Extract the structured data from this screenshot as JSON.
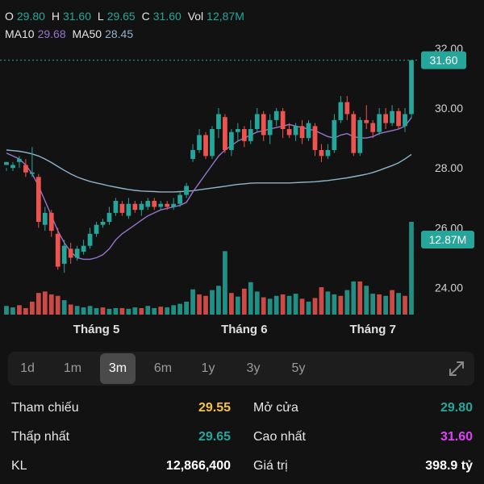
{
  "header": {
    "o_label": "O",
    "o_value": "29.80",
    "h_label": "H",
    "h_value": "31.60",
    "l_label": "L",
    "l_value": "29.65",
    "c_label": "C",
    "c_value": "31.60",
    "vol_label": "Vol",
    "vol_value": "12,87M",
    "ma10_label": "MA10",
    "ma10_value": "29.68",
    "ma50_label": "MA50",
    "ma50_value": "28.45"
  },
  "colors": {
    "up": "#26a69a",
    "down": "#ef5350",
    "ma10": "#9575cd",
    "ma50": "#8fb3c9",
    "ref": "#f5c242",
    "high": "#e040fb"
  },
  "chart_data": {
    "type": "candlestick",
    "price_ticks": [
      "32.00",
      "30.00",
      "28.00",
      "26.00",
      "24.00"
    ],
    "ylim": [
      23.1,
      32.4
    ],
    "month_labels": [
      {
        "label": "Tháng 5",
        "index": 14
      },
      {
        "label": "Tháng 6",
        "index": 37
      },
      {
        "label": "Tháng 7",
        "index": 57
      }
    ],
    "last_price_tag": "31.60",
    "last_volume_tag": "12.87M",
    "candles": [
      [
        28.1,
        28.2,
        28.0,
        27.9
      ],
      [
        28.0,
        28.1,
        28.2,
        27.9
      ],
      [
        28.2,
        28.3,
        28.4,
        28.0
      ],
      [
        28.1,
        27.85,
        28.3,
        27.7
      ],
      [
        27.8,
        27.85,
        28.7,
        27.7
      ],
      [
        27.7,
        26.2,
        27.8,
        26.0
      ],
      [
        26.1,
        26.5,
        26.7,
        25.9
      ],
      [
        26.5,
        25.9,
        26.6,
        25.7
      ],
      [
        25.8,
        24.7,
        26.0,
        24.6
      ],
      [
        24.8,
        25.4,
        25.6,
        24.5
      ],
      [
        25.3,
        25.0,
        25.5,
        24.8
      ],
      [
        25.0,
        25.3,
        25.4,
        24.9
      ],
      [
        25.2,
        25.4,
        25.6,
        25.1
      ],
      [
        25.4,
        25.8,
        26.0,
        25.3
      ],
      [
        25.8,
        26.1,
        26.2,
        25.7
      ],
      [
        26.1,
        26.2,
        26.3,
        26.0
      ],
      [
        26.2,
        26.5,
        26.7,
        26.1
      ],
      [
        26.5,
        26.9,
        27.0,
        26.4
      ],
      [
        26.8,
        26.5,
        26.9,
        26.4
      ],
      [
        26.4,
        26.8,
        27.0,
        26.3
      ],
      [
        26.8,
        26.6,
        26.9,
        26.5
      ],
      [
        26.6,
        26.8,
        26.9,
        26.4
      ],
      [
        26.7,
        26.9,
        27.0,
        26.6
      ],
      [
        26.9,
        26.7,
        27.0,
        26.6
      ],
      [
        26.7,
        26.8,
        26.9,
        26.6
      ],
      [
        26.8,
        26.7,
        26.9,
        26.6
      ],
      [
        26.7,
        26.8,
        27.0,
        26.6
      ],
      [
        26.8,
        27.1,
        27.2,
        26.7
      ],
      [
        27.1,
        27.4,
        27.5,
        27.0
      ],
      [
        28.3,
        28.6,
        28.8,
        28.2
      ],
      [
        28.6,
        29.1,
        29.3,
        28.5
      ],
      [
        29.1,
        28.4,
        29.2,
        28.3
      ],
      [
        28.4,
        29.3,
        29.4,
        28.3
      ],
      [
        29.3,
        29.8,
        30.0,
        29.0
      ],
      [
        29.7,
        28.6,
        29.8,
        28.5
      ],
      [
        28.6,
        29.2,
        29.3,
        28.4
      ],
      [
        29.2,
        29.3,
        29.5,
        28.9
      ],
      [
        29.3,
        28.9,
        29.4,
        28.7
      ],
      [
        28.9,
        29.3,
        29.6,
        28.8
      ],
      [
        29.3,
        29.8,
        30.0,
        29.2
      ],
      [
        29.8,
        29.1,
        29.9,
        28.9
      ],
      [
        29.1,
        29.6,
        29.8,
        28.8
      ],
      [
        29.6,
        29.9,
        30.0,
        29.4
      ],
      [
        29.9,
        29.3,
        30.0,
        29.0
      ],
      [
        29.3,
        29.1,
        29.5,
        29.0
      ],
      [
        29.1,
        29.4,
        29.5,
        28.9
      ],
      [
        29.4,
        29.0,
        29.6,
        28.8
      ],
      [
        29.0,
        29.5,
        29.6,
        28.9
      ],
      [
        29.4,
        28.6,
        29.5,
        28.4
      ],
      [
        28.6,
        28.4,
        28.8,
        28.2
      ],
      [
        28.4,
        28.6,
        28.8,
        28.3
      ],
      [
        28.6,
        29.6,
        29.8,
        28.5
      ],
      [
        29.6,
        30.2,
        30.4,
        29.5
      ],
      [
        30.2,
        29.8,
        30.4,
        29.6
      ],
      [
        29.8,
        28.5,
        29.9,
        28.4
      ],
      [
        28.5,
        29.6,
        29.7,
        28.4
      ],
      [
        29.6,
        29.5,
        30.1,
        29.3
      ],
      [
        29.5,
        29.2,
        29.6,
        29.0
      ],
      [
        29.2,
        29.8,
        30.0,
        29.1
      ],
      [
        29.8,
        29.5,
        30.0,
        29.3
      ],
      [
        29.5,
        29.9,
        30.1,
        29.4
      ],
      [
        29.9,
        29.4,
        30.0,
        29.3
      ],
      [
        29.4,
        29.8,
        30.0,
        29.2
      ],
      [
        29.8,
        31.6,
        31.6,
        29.65
      ]
    ],
    "volumes": [
      [
        1.2,
        1
      ],
      [
        1.0,
        1
      ],
      [
        1.3,
        0
      ],
      [
        0.9,
        0
      ],
      [
        1.8,
        0
      ],
      [
        3.0,
        0
      ],
      [
        3.2,
        0
      ],
      [
        2.8,
        0
      ],
      [
        2.6,
        0
      ],
      [
        2.0,
        1
      ],
      [
        1.4,
        0
      ],
      [
        1.2,
        1
      ],
      [
        1.0,
        1
      ],
      [
        1.2,
        1
      ],
      [
        0.9,
        1
      ],
      [
        1.0,
        0
      ],
      [
        0.8,
        1
      ],
      [
        0.9,
        1
      ],
      [
        0.9,
        0
      ],
      [
        0.8,
        1
      ],
      [
        1.0,
        1
      ],
      [
        0.9,
        0
      ],
      [
        1.2,
        1
      ],
      [
        0.9,
        1
      ],
      [
        1.1,
        0
      ],
      [
        1.0,
        1
      ],
      [
        1.3,
        1
      ],
      [
        1.5,
        1
      ],
      [
        1.8,
        1
      ],
      [
        3.5,
        1
      ],
      [
        2.8,
        0
      ],
      [
        2.6,
        0
      ],
      [
        3.4,
        1
      ],
      [
        4.0,
        1
      ],
      [
        8.8,
        1
      ],
      [
        3.0,
        0
      ],
      [
        2.5,
        1
      ],
      [
        3.6,
        0
      ],
      [
        4.5,
        1
      ],
      [
        3.2,
        1
      ],
      [
        2.4,
        0
      ],
      [
        2.2,
        1
      ],
      [
        2.6,
        1
      ],
      [
        2.8,
        0
      ],
      [
        2.6,
        1
      ],
      [
        2.9,
        1
      ],
      [
        2.2,
        0
      ],
      [
        1.8,
        1
      ],
      [
        2.3,
        0
      ],
      [
        3.8,
        0
      ],
      [
        3.2,
        1
      ],
      [
        2.8,
        1
      ],
      [
        2.6,
        0
      ],
      [
        3.4,
        1
      ],
      [
        4.6,
        1
      ],
      [
        4.6,
        0
      ],
      [
        4.0,
        1
      ],
      [
        2.9,
        1
      ],
      [
        2.8,
        0
      ],
      [
        2.6,
        1
      ],
      [
        3.4,
        0
      ],
      [
        3.0,
        1
      ],
      [
        2.6,
        0
      ],
      [
        12.87,
        1
      ]
    ],
    "ma10": [
      28.5,
      28.4,
      28.3,
      28.1,
      27.8,
      27.4,
      26.9,
      26.4,
      25.9,
      25.5,
      25.2,
      25.0,
      24.95,
      24.95,
      25.0,
      25.1,
      25.3,
      25.6,
      25.8,
      25.95,
      26.1,
      26.25,
      26.4,
      26.5,
      26.6,
      26.65,
      26.7,
      26.75,
      26.85,
      27.2,
      27.5,
      27.8,
      28.1,
      28.4,
      28.6,
      28.75,
      28.9,
      29.0,
      29.1,
      29.2,
      29.25,
      29.3,
      29.35,
      29.4,
      29.45,
      29.4,
      29.35,
      29.3,
      29.25,
      29.15,
      29.05,
      29.0,
      29.1,
      29.15,
      29.05,
      29.0,
      29.0,
      29.05,
      29.15,
      29.2,
      29.25,
      29.3,
      29.4,
      29.68
    ],
    "ma50": [
      28.6,
      28.58,
      28.56,
      28.52,
      28.47,
      28.4,
      28.3,
      28.18,
      28.05,
      27.92,
      27.8,
      27.7,
      27.62,
      27.55,
      27.5,
      27.45,
      27.4,
      27.36,
      27.32,
      27.28,
      27.25,
      27.23,
      27.22,
      27.21,
      27.2,
      27.2,
      27.2,
      27.21,
      27.22,
      27.24,
      27.27,
      27.3,
      27.33,
      27.36,
      27.39,
      27.42,
      27.45,
      27.47,
      27.49,
      27.5,
      27.5,
      27.5,
      27.5,
      27.5,
      27.5,
      27.51,
      27.52,
      27.53,
      27.54,
      27.56,
      27.58,
      27.61,
      27.64,
      27.67,
      27.71,
      27.75,
      27.79,
      27.85,
      27.92,
      28.0,
      28.08,
      28.17,
      28.3,
      28.45
    ],
    "vol_max": 12.87
  },
  "range": {
    "buttons": [
      "1d",
      "1m",
      "3m",
      "6m",
      "1y",
      "3y",
      "5y"
    ],
    "active": "3m"
  },
  "stats": {
    "ref_label": "Tham chiếu",
    "ref_value": "29.55",
    "open_label": "Mở cửa",
    "open_value": "29.80",
    "low_label": "Thấp nhất",
    "low_value": "29.65",
    "high_label": "Cao nhất",
    "high_value": "31.60",
    "vol_label": "KL",
    "vol_value": "12,866,400",
    "value_label": "Giá trị",
    "value_value": "398.9 tỷ"
  }
}
